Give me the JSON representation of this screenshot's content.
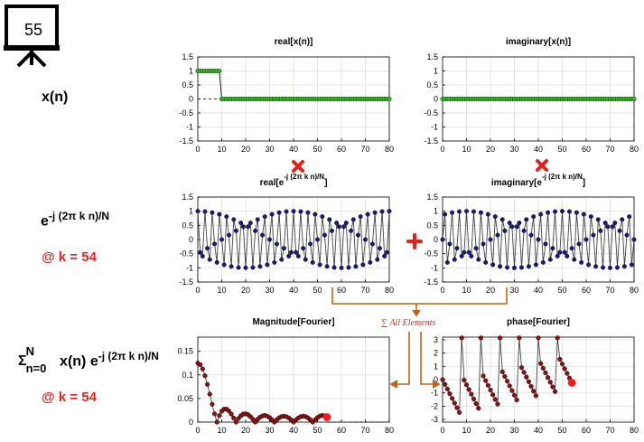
{
  "slide_number": "55",
  "labels": {
    "xn": "x(n)",
    "exp_base": "e",
    "exp_power": "-j (2π k n)/N",
    "k_value_1": "@ k = 54",
    "sum_symbol": "Σ",
    "sum_upper": "N",
    "sum_lower": "n=0",
    "sum_body": " x(n) e",
    "sum_power": "-j (2π k n)/N",
    "k_value_2": "@ k = 54",
    "sum_all": "∑ All Elements"
  },
  "colors": {
    "green": "#2fbf1f",
    "navy": "#1a1a7a",
    "darkred": "#8a1212",
    "red": "#ff1a1a",
    "arrow": "#c5620f",
    "op_red": "#e8201c"
  },
  "chart_data": [
    {
      "id": "real_x",
      "type": "line",
      "title": "real[x(n)]",
      "xlim": [
        0,
        80
      ],
      "ylim": [
        -1.5,
        1.5
      ],
      "xticks": [
        0,
        10,
        20,
        30,
        40,
        50,
        60,
        70,
        80
      ],
      "yticks": [
        -1.5,
        -1,
        -0.5,
        0,
        0.5,
        1,
        1.5
      ],
      "ytick_labels": [
        "-1.5",
        "-1",
        "-0.5",
        "0",
        "0.5",
        "1",
        "1.5"
      ],
      "grid": true,
      "signal": "rect",
      "n_points": 81,
      "ones_until": 9,
      "marker_color": "green"
    },
    {
      "id": "imag_x",
      "type": "line",
      "title": "imaginary[x(n)]",
      "xlim": [
        0,
        80
      ],
      "ylim": [
        -1.5,
        1.5
      ],
      "xticks": [
        0,
        10,
        20,
        30,
        40,
        50,
        60,
        70,
        80
      ],
      "yticks": [
        -1.5,
        -1,
        -0.5,
        0,
        0.5,
        1,
        1.5
      ],
      "ytick_labels": [
        "-1.5",
        "-1",
        "-0.5",
        "0",
        "0.5",
        "1",
        "1.5"
      ],
      "grid": true,
      "signal": "zero",
      "n_points": 81,
      "marker_color": "green"
    },
    {
      "id": "real_e",
      "type": "line",
      "title_base": "real[e",
      "title_power": "-j (2π k n)/N",
      "title_end": "]",
      "xlim": [
        0,
        80
      ],
      "ylim": [
        -1.5,
        1.5
      ],
      "xticks": [
        0,
        10,
        20,
        30,
        40,
        50,
        60,
        70,
        80
      ],
      "yticks": [
        -1.5,
        -1,
        -0.5,
        0,
        0.5,
        1,
        1.5
      ],
      "ytick_labels": [
        "-1.5",
        "-1",
        "-0.5",
        "0",
        "0.5",
        "1",
        "1.5"
      ],
      "grid": true,
      "signal": "cos",
      "k": 54,
      "N": 80,
      "n_points": 81,
      "marker_color": "navy"
    },
    {
      "id": "imag_e",
      "type": "line",
      "title_base": "imaginary[e",
      "title_power": "-j (2π k n)/N",
      "title_end": "]",
      "xlim": [
        0,
        80
      ],
      "ylim": [
        -1.5,
        1.5
      ],
      "xticks": [
        0,
        10,
        20,
        30,
        40,
        50,
        60,
        70,
        80
      ],
      "yticks": [
        -1.5,
        -1,
        -0.5,
        0,
        0.5,
        1,
        1.5
      ],
      "ytick_labels": [
        "-1.5",
        "-1",
        "-0.5",
        "0",
        "0.5",
        "1",
        "1.5"
      ],
      "grid": true,
      "signal": "msin",
      "k": 54,
      "N": 80,
      "n_points": 81,
      "marker_color": "navy"
    },
    {
      "id": "magnitude",
      "type": "line",
      "title": "Magnitude[Fourier]",
      "xlim": [
        0,
        80
      ],
      "ylim": [
        0,
        0.18
      ],
      "xticks": [
        0,
        10,
        20,
        30,
        40,
        50,
        60,
        70,
        80
      ],
      "yticks": [
        0,
        0.05,
        0.1,
        0.15
      ],
      "ytick_labels": [
        "0",
        "0.05",
        "0.1",
        "0.15"
      ],
      "grid": true,
      "signal": "dft_mag",
      "N": 80,
      "L": 10,
      "upto": 54,
      "marker_color": "darkred",
      "highlight_color": "red"
    },
    {
      "id": "phase",
      "type": "line",
      "title": "phase[Fourier]",
      "xlim": [
        0,
        80
      ],
      "ylim": [
        -3.2,
        3.2
      ],
      "xticks": [
        0,
        10,
        20,
        30,
        40,
        50,
        60,
        70,
        80
      ],
      "yticks": [
        -3,
        -2,
        -1,
        0,
        1,
        2,
        3
      ],
      "ytick_labels": [
        "-3",
        "-2",
        "-1",
        "0",
        "1",
        "2",
        "3"
      ],
      "grid": true,
      "signal": "dft_phase",
      "N": 80,
      "L": 10,
      "upto": 54,
      "marker_color": "darkred",
      "highlight_color": "red"
    }
  ]
}
